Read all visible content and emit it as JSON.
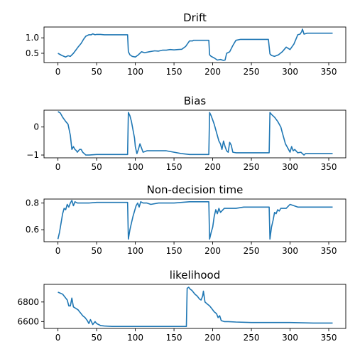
{
  "figure": {
    "line_color": "#1f77b4"
  },
  "chart_data": [
    {
      "type": "line",
      "title": "Drift",
      "xlim": [
        -18,
        372
      ],
      "ylim": [
        0.2,
        1.35
      ],
      "xticks": [
        0,
        50,
        100,
        150,
        200,
        250,
        300,
        350
      ],
      "yticks": [
        0.5,
        1.0
      ],
      "ytick_labels": [
        "0.5",
        "1.0"
      ],
      "series": [
        {
          "x": [
            0,
            5,
            10,
            13,
            16,
            20,
            23,
            26,
            30,
            33,
            36,
            40,
            43,
            45,
            48,
            50,
            55,
            60,
            70,
            80,
            90,
            91,
            93,
            96,
            100,
            104,
            108,
            112,
            118,
            125,
            130,
            135,
            140,
            145,
            150,
            155,
            160,
            165,
            170,
            174,
            175,
            180,
            185,
            195,
            196,
            198,
            202,
            206,
            210,
            214,
            216,
            218,
            222,
            226,
            230,
            236,
            240,
            245,
            250,
            258,
            266,
            272,
            274,
            276,
            280,
            285,
            290,
            295,
            300,
            305,
            310,
            313,
            315,
            316,
            318,
            322,
            330,
            340,
            355
          ],
          "values": [
            0.5,
            0.43,
            0.38,
            0.42,
            0.4,
            0.5,
            0.6,
            0.7,
            0.82,
            0.95,
            1.05,
            1.1,
            1.1,
            1.13,
            1.1,
            1.11,
            1.11,
            1.1,
            1.1,
            1.1,
            1.1,
            0.55,
            0.45,
            0.4,
            0.38,
            0.45,
            0.55,
            0.52,
            0.55,
            0.58,
            0.57,
            0.6,
            0.6,
            0.62,
            0.61,
            0.62,
            0.63,
            0.72,
            0.9,
            0.9,
            0.92,
            0.92,
            0.92,
            0.92,
            0.45,
            0.4,
            0.35,
            0.28,
            0.3,
            0.27,
            0.28,
            0.5,
            0.55,
            0.75,
            0.92,
            0.95,
            0.95,
            0.95,
            0.95,
            0.95,
            0.95,
            0.95,
            0.48,
            0.43,
            0.4,
            0.45,
            0.55,
            0.7,
            0.62,
            0.8,
            1.1,
            1.12,
            1.2,
            1.28,
            1.12,
            1.15,
            1.15,
            1.15,
            1.15
          ]
        }
      ]
    },
    {
      "type": "line",
      "title": "Bias",
      "xlim": [
        -18,
        372
      ],
      "ylim": [
        -1.1,
        0.6
      ],
      "xticks": [
        0,
        50,
        100,
        150,
        200,
        250,
        300,
        350
      ],
      "yticks": [
        -1,
        0
      ],
      "ytick_labels": [
        "−1",
        "0"
      ],
      "series": [
        {
          "x": [
            0,
            3,
            6,
            10,
            13,
            16,
            18,
            20,
            22,
            24,
            25,
            28,
            30,
            32,
            34,
            36,
            40,
            50,
            60,
            70,
            80,
            90,
            91,
            93,
            95,
            97,
            99,
            100,
            102,
            104,
            106,
            110,
            115,
            120,
            130,
            140,
            150,
            160,
            170,
            180,
            190,
            195,
            196,
            198,
            200,
            202,
            204,
            206,
            208,
            210,
            212,
            214,
            216,
            218,
            220,
            222,
            224,
            226,
            230,
            240,
            250,
            260,
            270,
            273,
            274,
            276,
            280,
            284,
            288,
            290,
            292,
            294,
            296,
            298,
            300,
            302,
            304,
            306,
            310,
            314,
            316,
            318,
            320,
            325,
            330,
            340,
            350,
            355
          ],
          "values": [
            0.55,
            0.5,
            0.35,
            0.2,
            0.1,
            -0.3,
            -0.8,
            -0.7,
            -0.8,
            -0.85,
            -0.9,
            -0.8,
            -0.8,
            -0.9,
            -0.95,
            -1.0,
            -1.0,
            -0.98,
            -0.98,
            -0.98,
            -0.98,
            -0.98,
            0.52,
            0.4,
            0.2,
            -0.1,
            -0.4,
            -0.7,
            -0.95,
            -0.8,
            -0.6,
            -0.9,
            -0.85,
            -0.85,
            -0.85,
            -0.85,
            -0.9,
            -0.95,
            -0.98,
            -0.98,
            -0.98,
            -0.98,
            0.52,
            0.4,
            0.25,
            0.1,
            -0.1,
            -0.3,
            -0.5,
            -0.6,
            -0.8,
            -0.5,
            -0.7,
            -0.85,
            -0.9,
            -0.55,
            -0.65,
            -0.9,
            -0.92,
            -0.92,
            -0.92,
            -0.92,
            -0.92,
            -0.92,
            0.52,
            0.45,
            0.35,
            0.2,
            0.0,
            -0.2,
            -0.4,
            -0.6,
            -0.7,
            -0.8,
            -0.9,
            -0.7,
            -0.85,
            -0.8,
            -0.92,
            -0.9,
            -0.95,
            -1.0,
            -0.95,
            -0.95,
            -0.95,
            -0.95,
            -0.95,
            -0.95
          ]
        }
      ]
    },
    {
      "type": "line",
      "title": "Non-decision time",
      "xlim": [
        -18,
        372
      ],
      "ylim": [
        0.51,
        0.83
      ],
      "xticks": [
        0,
        50,
        100,
        150,
        200,
        250,
        300,
        350
      ],
      "yticks": [
        0.6,
        0.8
      ],
      "ytick_labels": [
        "0.6",
        "0.8"
      ],
      "series": [
        {
          "x": [
            0,
            2,
            4,
            6,
            8,
            10,
            12,
            14,
            16,
            18,
            20,
            22,
            25,
            30,
            40,
            50,
            60,
            70,
            80,
            90,
            91,
            93,
            95,
            97,
            99,
            101,
            103,
            105,
            107,
            110,
            115,
            120,
            130,
            140,
            150,
            160,
            170,
            180,
            190,
            195,
            196,
            198,
            200,
            202,
            204,
            206,
            208,
            210,
            215,
            220,
            230,
            240,
            250,
            260,
            270,
            273,
            274,
            276,
            278,
            280,
            282,
            284,
            286,
            288,
            290,
            295,
            300,
            310,
            320,
            330,
            340,
            350,
            355
          ],
          "values": [
            0.53,
            0.58,
            0.65,
            0.72,
            0.76,
            0.75,
            0.79,
            0.77,
            0.8,
            0.82,
            0.78,
            0.81,
            0.8,
            0.8,
            0.8,
            0.805,
            0.805,
            0.805,
            0.805,
            0.805,
            0.53,
            0.6,
            0.65,
            0.7,
            0.74,
            0.78,
            0.8,
            0.77,
            0.81,
            0.8,
            0.8,
            0.79,
            0.8,
            0.8,
            0.8,
            0.805,
            0.81,
            0.81,
            0.81,
            0.81,
            0.53,
            0.58,
            0.62,
            0.7,
            0.75,
            0.72,
            0.76,
            0.73,
            0.76,
            0.76,
            0.76,
            0.77,
            0.77,
            0.77,
            0.77,
            0.77,
            0.53,
            0.62,
            0.67,
            0.73,
            0.72,
            0.75,
            0.74,
            0.76,
            0.76,
            0.76,
            0.79,
            0.77,
            0.77,
            0.77,
            0.77,
            0.77,
            0.77
          ]
        }
      ]
    },
    {
      "type": "line",
      "title": "likelihood",
      "xlim": [
        -18,
        372
      ],
      "ylim": [
        6530,
        6980
      ],
      "xticks": [
        0,
        50,
        100,
        150,
        200,
        250,
        300,
        350
      ],
      "yticks": [
        6600,
        6800
      ],
      "ytick_labels": [
        "6600",
        "6800"
      ],
      "series": [
        {
          "x": [
            0,
            3,
            6,
            9,
            12,
            14,
            16,
            18,
            20,
            22,
            24,
            26,
            28,
            30,
            32,
            35,
            38,
            40,
            42,
            45,
            48,
            50,
            55,
            60,
            70,
            80,
            100,
            120,
            140,
            160,
            166,
            167,
            169,
            171,
            173,
            175,
            177,
            180,
            183,
            185,
            187,
            188,
            190,
            193,
            196,
            199,
            202,
            205,
            207,
            209,
            211,
            215,
            220,
            230,
            250,
            270,
            300,
            330,
            355
          ],
          "values": [
            6900,
            6890,
            6880,
            6850,
            6820,
            6760,
            6760,
            6840,
            6750,
            6740,
            6730,
            6720,
            6700,
            6680,
            6660,
            6640,
            6610,
            6580,
            6620,
            6570,
            6600,
            6580,
            6560,
            6555,
            6550,
            6550,
            6550,
            6550,
            6550,
            6550,
            6550,
            6940,
            6950,
            6930,
            6920,
            6900,
            6880,
            6860,
            6830,
            6820,
            6860,
            6910,
            6800,
            6780,
            6760,
            6730,
            6700,
            6680,
            6640,
            6660,
            6610,
            6600,
            6600,
            6595,
            6590,
            6590,
            6590,
            6585,
            6585
          ]
        }
      ]
    }
  ]
}
